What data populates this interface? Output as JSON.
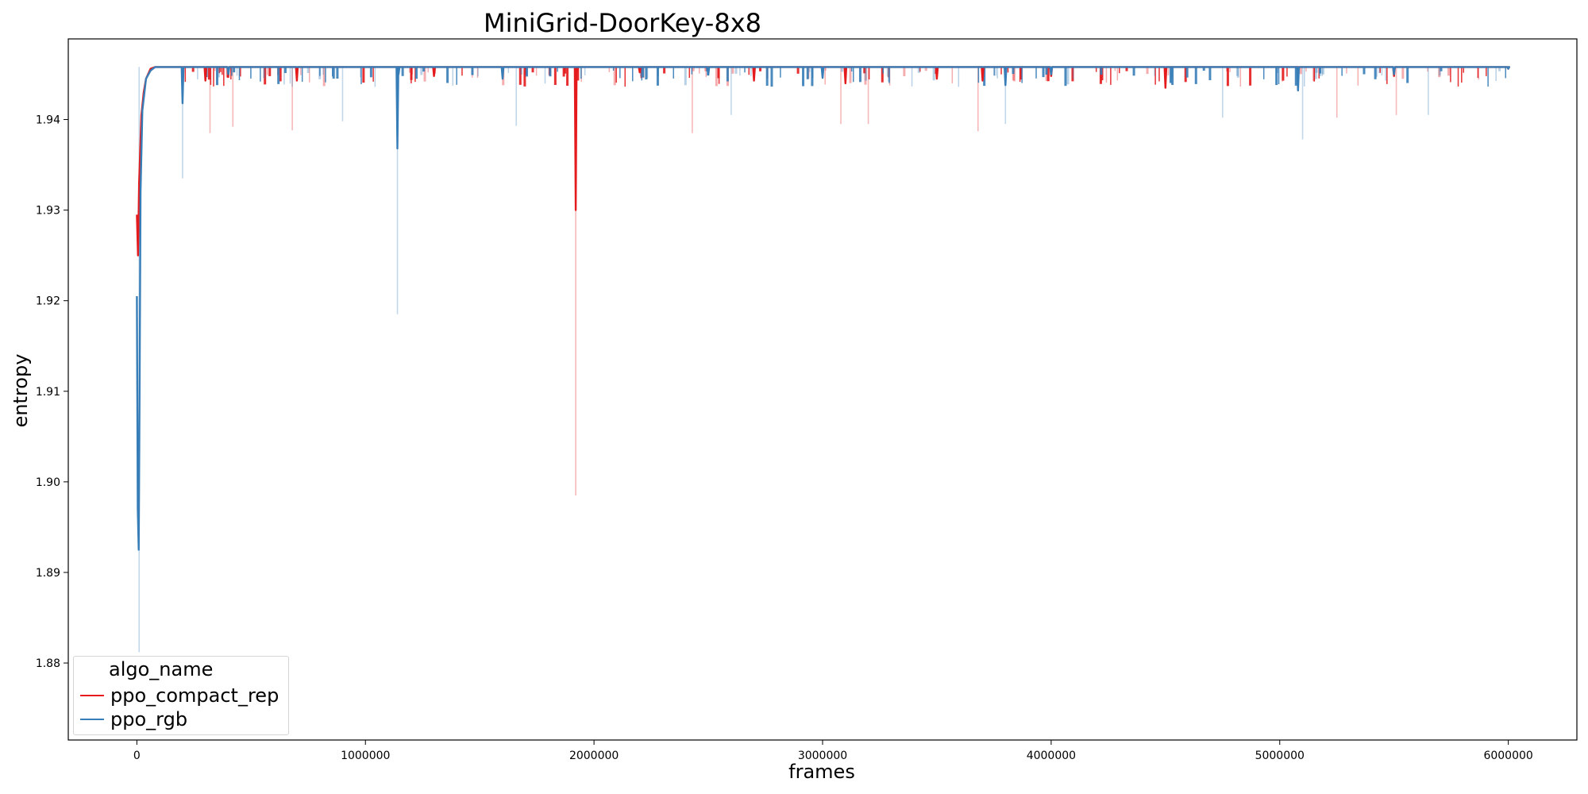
{
  "chart_data": {
    "type": "line",
    "title": "MiniGrid-DoorKey-8x8",
    "xlabel": "frames",
    "ylabel": "entropy",
    "xlim": [
      -300000,
      6300000
    ],
    "ylim": [
      1.8715,
      1.9489
    ],
    "xticks": [
      0,
      1000000,
      2000000,
      3000000,
      4000000,
      5000000,
      6000000
    ],
    "xtick_labels": [
      "0",
      "1000000",
      "2000000",
      "3000000",
      "4000000",
      "5000000",
      "6000000"
    ],
    "yticks": [
      1.88,
      1.89,
      1.9,
      1.91,
      1.92,
      1.93,
      1.94
    ],
    "ytick_labels": [
      "1.88",
      "1.89",
      "1.90",
      "1.91",
      "1.92",
      "1.93",
      "1.94"
    ],
    "grid": false,
    "legend": {
      "title": "algo_name",
      "placement": "lower-left"
    },
    "baseline": 1.9458,
    "series": [
      {
        "name": "ppo_compact_rep",
        "color": "#e41a1c",
        "x": [
          0,
          5000,
          10000,
          20000,
          30000,
          40000,
          60000,
          80000,
          120000,
          200000,
          300000,
          400000,
          600000,
          700000,
          1300000,
          1920000,
          1925000,
          1935000,
          2200000,
          2700000,
          3100000,
          3500000,
          3700000,
          4000000,
          4500000,
          5500000,
          6000000
        ],
        "values": [
          1.9295,
          1.925,
          1.933,
          1.9405,
          1.943,
          1.9445,
          1.9456,
          1.9458,
          1.9458,
          1.9458,
          1.9443,
          1.9448,
          1.9458,
          1.9443,
          1.9448,
          1.93,
          1.9452,
          1.9458,
          1.9452,
          1.9443,
          1.944,
          1.9445,
          1.9443,
          1.9448,
          1.9435,
          1.9448,
          1.9456
        ],
        "band_min_dips": [
          [
            320000,
            1.9385
          ],
          [
            420000,
            1.9392
          ],
          [
            680000,
            1.9388
          ],
          [
            1920000,
            1.8985
          ],
          [
            2430000,
            1.9385
          ],
          [
            3080000,
            1.9395
          ],
          [
            3200000,
            1.9395
          ],
          [
            3680000,
            1.9387
          ],
          [
            5250000,
            1.9402
          ],
          [
            5510000,
            1.9405
          ]
        ]
      },
      {
        "name": "ppo_rgb",
        "color": "#377eb8",
        "x": [
          0,
          4000,
          8000,
          12000,
          16000,
          24000,
          40000,
          60000,
          80000,
          200000,
          400000,
          1140000,
          1145000,
          1150000,
          1600000,
          2500000,
          3000000,
          3800000,
          4000000,
          5080000,
          5500000,
          6000000
        ],
        "values": [
          1.9205,
          1.897,
          1.8925,
          1.91,
          1.932,
          1.941,
          1.9445,
          1.9454,
          1.9458,
          1.9418,
          1.945,
          1.9368,
          1.945,
          1.9458,
          1.9445,
          1.945,
          1.9446,
          1.9438,
          1.945,
          1.9432,
          1.945,
          1.9456
        ],
        "band_min_dips": [
          [
            10000,
            1.8812
          ],
          [
            200000,
            1.9335
          ],
          [
            900000,
            1.9398
          ],
          [
            1140000,
            1.9185
          ],
          [
            1660000,
            1.9393
          ],
          [
            2600000,
            1.9405
          ],
          [
            3800000,
            1.9395
          ],
          [
            4750000,
            1.9402
          ],
          [
            5100000,
            1.9378
          ],
          [
            5650000,
            1.9405
          ]
        ]
      }
    ]
  }
}
